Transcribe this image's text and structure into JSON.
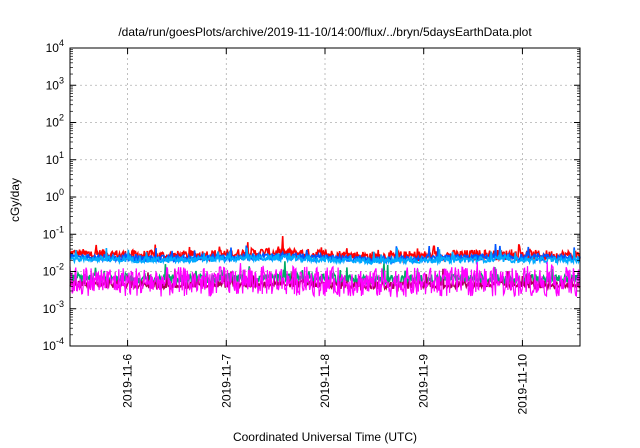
{
  "chart_data": {
    "type": "line",
    "title": "/data/run/goesPlots/archive/2019-11-10/14:00/flux/../bryn/5daysEarthData.plot",
    "xlabel": "Coordinated Universal Time (UTC)",
    "ylabel": "cGy/day",
    "y_scale": "log",
    "ylim": [
      0.0001,
      10000
    ],
    "y_ticks": [
      {
        "base": "10",
        "exp": "-4",
        "value": 0.0001
      },
      {
        "base": "10",
        "exp": "-3",
        "value": 0.001
      },
      {
        "base": "10",
        "exp": "-2",
        "value": 0.01
      },
      {
        "base": "10",
        "exp": "-1",
        "value": 0.1
      },
      {
        "base": "10",
        "exp": "0",
        "value": 1
      },
      {
        "base": "10",
        "exp": "1",
        "value": 10
      },
      {
        "base": "10",
        "exp": "2",
        "value": 100
      },
      {
        "base": "10",
        "exp": "3",
        "value": 1000
      },
      {
        "base": "10",
        "exp": "4",
        "value": 10000
      }
    ],
    "xlim": [
      "2019-11-05T10:00",
      "2019-11-10T14:00"
    ],
    "x_ticks": [
      "2019-11-6",
      "2019-11-7",
      "2019-11-8",
      "2019-11-9",
      "2019-11-10"
    ],
    "grid": true,
    "series": [
      {
        "color": "#ff0000",
        "base": 0.028,
        "spread": 0.55,
        "x": [
          "2019-11-05T10:00",
          "2019-11-06T10:00",
          "2019-11-07T10:00",
          "2019-11-08T10:00",
          "2019-11-09T10:00",
          "2019-11-10T14:00"
        ],
        "values": [
          0.03,
          0.026,
          0.032,
          0.025,
          0.028,
          0.027
        ]
      },
      {
        "color": "#0055ff",
        "base": 0.024,
        "spread": 0.35,
        "x": [
          "2019-11-05T10:00",
          "2019-11-06T10:00",
          "2019-11-07T10:00",
          "2019-11-08T10:00",
          "2019-11-09T10:00",
          "2019-11-10T14:00"
        ],
        "values": [
          0.025,
          0.022,
          0.026,
          0.021,
          0.024,
          0.023
        ]
      },
      {
        "color": "#00aaff",
        "base": 0.021,
        "spread": 0.3,
        "x": [
          "2019-11-05T10:00",
          "2019-11-06T10:00",
          "2019-11-07T10:00",
          "2019-11-08T10:00",
          "2019-11-09T10:00",
          "2019-11-10T14:00"
        ],
        "values": [
          0.022,
          0.02,
          0.023,
          0.019,
          0.021,
          0.02
        ]
      },
      {
        "color": "#00aa66",
        "base": 0.0065,
        "spread": 0.5,
        "x": [
          "2019-11-05T10:00",
          "2019-11-06T10:00",
          "2019-11-07T10:00",
          "2019-11-08T10:00",
          "2019-11-09T10:00",
          "2019-11-10T14:00"
        ],
        "values": [
          0.0066,
          0.0062,
          0.0068,
          0.006,
          0.0064,
          0.0063
        ]
      },
      {
        "color": "#aa0055",
        "base": 0.0045,
        "spread": 0.4,
        "x": [
          "2019-11-05T10:00",
          "2019-11-06T10:00",
          "2019-11-07T10:00",
          "2019-11-08T10:00",
          "2019-11-09T10:00",
          "2019-11-10T14:00"
        ],
        "values": [
          0.0046,
          0.0043,
          0.0048,
          0.0042,
          0.0045,
          0.0044
        ]
      },
      {
        "color": "#ff00ff",
        "base": 0.0055,
        "spread": 1.6,
        "x": [
          "2019-11-05T10:00",
          "2019-11-06T10:00",
          "2019-11-07T10:00",
          "2019-11-08T10:00",
          "2019-11-09T10:00",
          "2019-11-10T14:00"
        ],
        "values": [
          0.0056,
          0.0052,
          0.0058,
          0.005,
          0.0054,
          0.0053
        ]
      }
    ]
  }
}
